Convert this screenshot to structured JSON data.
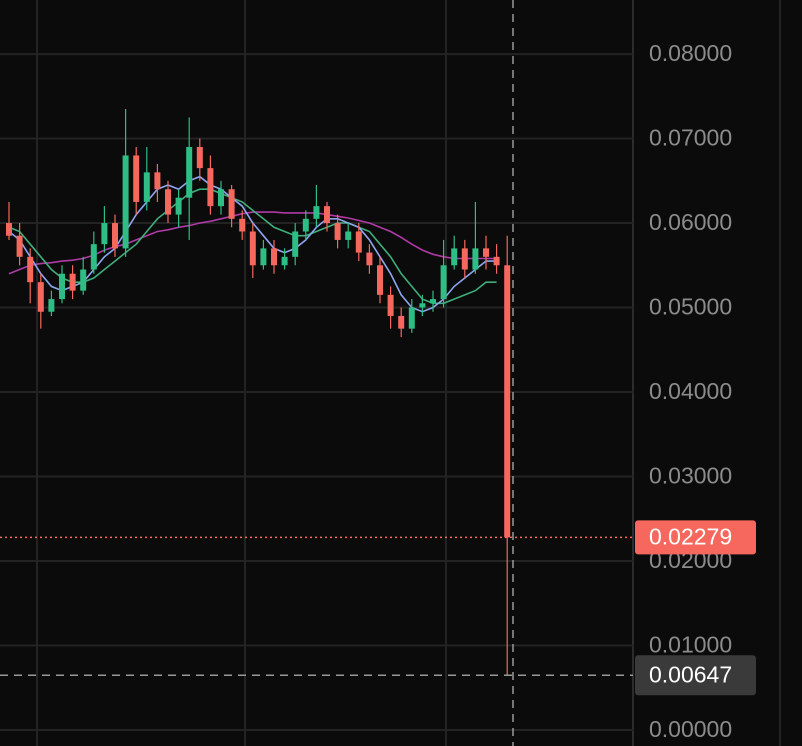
{
  "chart_data": {
    "type": "candlestick",
    "up_color": "#2ebd85",
    "down_color": "#f6685e",
    "grid": true,
    "ylim": [
      -0.0019,
      0.0864
    ],
    "yticks": [
      {
        "value": 0.08,
        "label": "0.08000"
      },
      {
        "value": 0.07,
        "label": "0.07000"
      },
      {
        "value": 0.06,
        "label": "0.06000"
      },
      {
        "value": 0.05,
        "label": "0.05000"
      },
      {
        "value": 0.04,
        "label": "0.04000"
      },
      {
        "value": 0.03,
        "label": "0.03000"
      },
      {
        "value": 0.02,
        "label": "0.02000"
      },
      {
        "value": 0.01,
        "label": "0.01000"
      },
      {
        "value": 0,
        "label": "0.00000"
      }
    ],
    "open": [
      0.06,
      0.0585,
      0.056,
      0.053,
      0.0495,
      0.051,
      0.054,
      0.052,
      0.0545,
      0.0575,
      0.06,
      0.057,
      0.068,
      0.0625,
      0.066,
      0.064,
      0.061,
      0.063,
      0.069,
      0.0665,
      0.062,
      0.064,
      0.0605,
      0.059,
      0.055,
      0.057,
      0.055,
      0.056,
      0.059,
      0.0605,
      0.062,
      0.06,
      0.058,
      0.059,
      0.0565,
      0.055,
      0.0515,
      0.049,
      0.0475,
      0.05,
      0.0505,
      0.051,
      0.055,
      0.057,
      0.0545,
      0.057,
      0.056,
      0.055
    ],
    "high": [
      0.0625,
      0.06,
      0.057,
      0.054,
      0.052,
      0.055,
      0.055,
      0.056,
      0.059,
      0.062,
      0.061,
      0.0735,
      0.069,
      0.069,
      0.067,
      0.065,
      0.064,
      0.0725,
      0.07,
      0.068,
      0.065,
      0.0645,
      0.0615,
      0.06,
      0.058,
      0.058,
      0.057,
      0.06,
      0.0615,
      0.0645,
      0.0625,
      0.061,
      0.06,
      0.06,
      0.0575,
      0.056,
      0.0525,
      0.05,
      0.051,
      0.0515,
      0.052,
      0.058,
      0.0585,
      0.058,
      0.0625,
      0.0585,
      0.0575,
      0.0585
    ],
    "low": [
      0.058,
      0.055,
      0.0505,
      0.0475,
      0.049,
      0.0505,
      0.051,
      0.0515,
      0.054,
      0.0565,
      0.056,
      0.056,
      0.061,
      0.0615,
      0.0625,
      0.06,
      0.0595,
      0.058,
      0.065,
      0.061,
      0.061,
      0.0595,
      0.058,
      0.0535,
      0.0545,
      0.054,
      0.0545,
      0.055,
      0.058,
      0.0595,
      0.059,
      0.057,
      0.057,
      0.0555,
      0.054,
      0.0505,
      0.0475,
      0.0465,
      0.047,
      0.049,
      0.0495,
      0.05,
      0.0545,
      0.0535,
      0.054,
      0.0545,
      0.054,
      0.00647
    ],
    "close": [
      0.0585,
      0.056,
      0.053,
      0.0495,
      0.051,
      0.054,
      0.052,
      0.0545,
      0.0575,
      0.06,
      0.057,
      0.068,
      0.0625,
      0.066,
      0.064,
      0.061,
      0.063,
      0.069,
      0.0665,
      0.062,
      0.064,
      0.0605,
      0.059,
      0.055,
      0.057,
      0.055,
      0.056,
      0.059,
      0.0605,
      0.062,
      0.06,
      0.058,
      0.059,
      0.0565,
      0.055,
      0.0515,
      0.049,
      0.0475,
      0.05,
      0.0505,
      0.051,
      0.055,
      0.057,
      0.0545,
      0.057,
      0.056,
      0.055,
      0.02279
    ],
    "moving_averages": [
      {
        "color": "#b03aa6",
        "values": [
          0.054,
          0.0545,
          0.055,
          0.0552,
          0.0553,
          0.0555,
          0.0556,
          0.0558,
          0.0562,
          0.0568,
          0.0572,
          0.0575,
          0.058,
          0.0585,
          0.059,
          0.0592,
          0.0595,
          0.0597,
          0.06,
          0.0602,
          0.0605,
          0.0608,
          0.0611,
          0.0613,
          0.0613,
          0.0613,
          0.0612,
          0.0612,
          0.0612,
          0.0612,
          0.061,
          0.0608,
          0.0606,
          0.0603,
          0.06,
          0.0595,
          0.059,
          0.0583,
          0.0575,
          0.0568,
          0.0563,
          0.056,
          0.0558,
          0.0558,
          0.0558,
          0.0558,
          0.0558,
          null
        ]
      },
      {
        "color": "#3fae7a",
        "values": [
          0.0595,
          0.059,
          0.0575,
          0.056,
          0.0545,
          0.0535,
          0.053,
          0.053,
          0.0535,
          0.0545,
          0.0555,
          0.0565,
          0.0575,
          0.059,
          0.0605,
          0.0615,
          0.0625,
          0.0635,
          0.064,
          0.064,
          0.0635,
          0.063,
          0.0625,
          0.0615,
          0.0605,
          0.0595,
          0.059,
          0.0585,
          0.0585,
          0.059,
          0.0595,
          0.06,
          0.06,
          0.0595,
          0.059,
          0.0575,
          0.056,
          0.054,
          0.0525,
          0.051,
          0.0505,
          0.0505,
          0.051,
          0.0515,
          0.052,
          0.053,
          0.053,
          null
        ]
      },
      {
        "color": "#8ea6f0",
        "values": [
          0.059,
          0.058,
          0.056,
          0.054,
          0.0525,
          0.052,
          0.0525,
          0.053,
          0.0545,
          0.056,
          0.057,
          0.059,
          0.061,
          0.0625,
          0.064,
          0.0645,
          0.064,
          0.065,
          0.0655,
          0.0645,
          0.064,
          0.063,
          0.062,
          0.06,
          0.0585,
          0.057,
          0.0565,
          0.057,
          0.058,
          0.0595,
          0.0605,
          0.0605,
          0.06,
          0.0595,
          0.058,
          0.056,
          0.054,
          0.0515,
          0.05,
          0.0495,
          0.05,
          0.051,
          0.0525,
          0.0535,
          0.0545,
          0.0555,
          0.0555,
          null
        ]
      }
    ],
    "last_price": 0.02279,
    "last_price_color": "#f6685e",
    "crosshair_price": 0.00647,
    "crosshair_color": "#3a3a3a"
  }
}
